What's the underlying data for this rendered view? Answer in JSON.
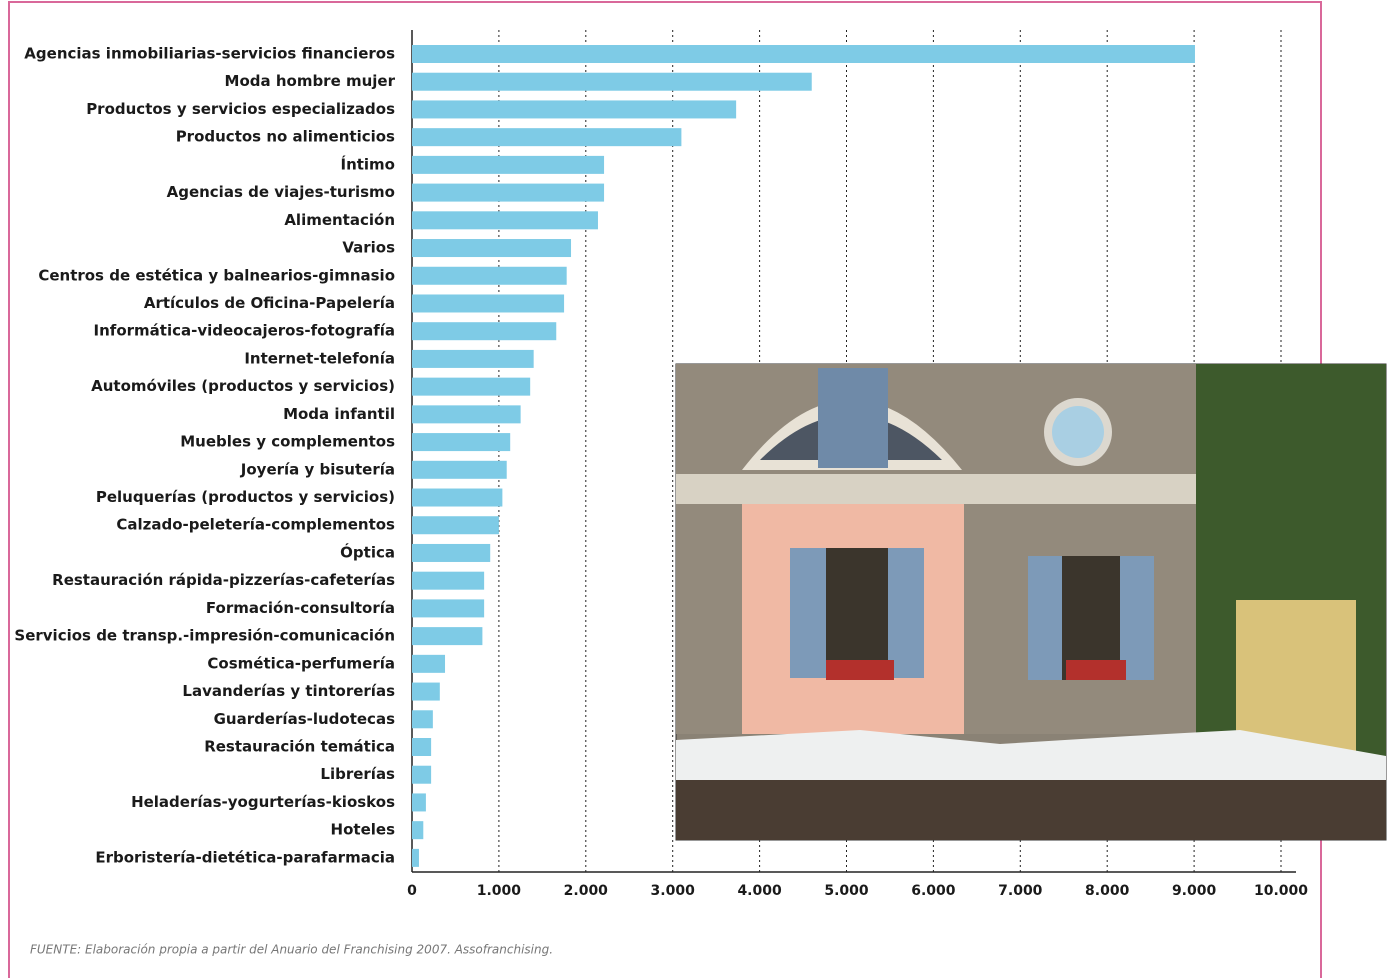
{
  "chart_data": {
    "type": "hbar",
    "categories": [
      "Agencias inmobiliarias-servicios financieros",
      "Moda hombre mujer",
      "Productos y servicios especializados",
      "Productos no alimenticios",
      "Íntimo",
      "Agencias de viajes-turismo",
      "Alimentación",
      "Varios",
      "Centros de estética y balnearios-gimnasio",
      "Artículos de Oficina-Papelería",
      "Informática-videocajeros-fotografía",
      "Internet-telefonía",
      "Automóviles (productos y servicios)",
      "Moda infantil",
      "Muebles y complementos",
      "Joyería y bisutería",
      "Peluquerías (productos y servicios)",
      "Calzado-peletería-complementos",
      "Óptica",
      "Restauración rápida-pizzerías-cafeterías",
      "Formación-consultoría",
      "Servicios de transp.-impresión-comunicación",
      "Cosmética-perfumería",
      "Lavanderías y tintorerías",
      "Guarderías-ludotecas",
      "Restauración temática",
      "Librerías",
      "Heladerías-yogurterías-kioskos",
      "Hoteles",
      "Erboristería-dietética-parafarmacia"
    ],
    "values": [
      9010,
      4600,
      3730,
      3100,
      2210,
      2210,
      2140,
      1830,
      1780,
      1750,
      1660,
      1400,
      1360,
      1250,
      1130,
      1090,
      1040,
      1000,
      900,
      830,
      830,
      810,
      380,
      320,
      240,
      220,
      220,
      160,
      130,
      80
    ],
    "color": "#7ecbe6",
    "xlim": [
      0,
      10000
    ],
    "xticks": [
      0,
      {
        "value": 1000,
        "label": "1.000"
      },
      {
        "value": 2000,
        "label": "2.000"
      },
      {
        "value": 3000,
        "label": "3.000"
      },
      {
        "value": 4000,
        "label": "4.000"
      },
      {
        "value": 5000,
        "label": "5.000"
      },
      {
        "value": 6000,
        "label": "6.000"
      },
      {
        "value": 7000,
        "label": "7.000"
      },
      {
        "value": 8000,
        "label": "8.000"
      },
      {
        "value": 9000,
        "label": "9.000"
      },
      {
        "value": 10000,
        "label": "10.000"
      }
    ],
    "grid": true,
    "source": "FUENTE: Elaboración propia a partir del Anuario del Franchising 2007. Assofranchising."
  }
}
